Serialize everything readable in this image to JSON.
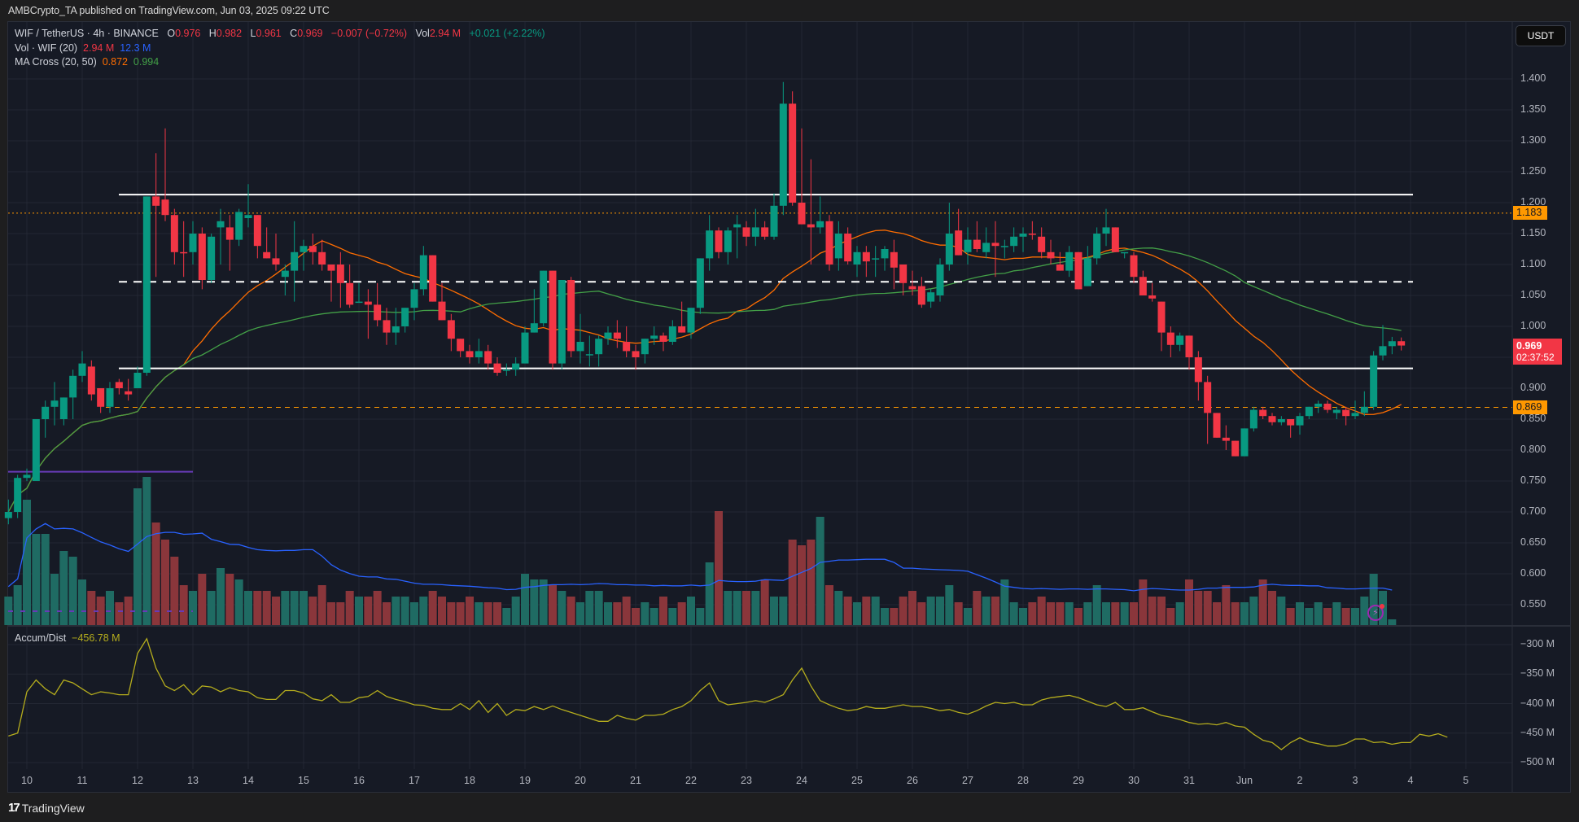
{
  "header": {
    "published": "AMBCrypto_TA published on TradingView.com, Jun 03, 2025 09:22 UTC"
  },
  "legend": {
    "symbol": "WIF / TetherUS · 4h · BINANCE",
    "o_label": "O",
    "o": "0.976",
    "h_label": "H",
    "h": "0.982",
    "l_label": "L",
    "l": "0.961",
    "c_label": "C",
    "c": "0.969",
    "change": "−0.007 (−0.72%)",
    "vol_label": "Vol",
    "vol": "2.94 M",
    "extra_change": "+0.021 (+2.22%)",
    "vol_indicator": "Vol · WIF (20)",
    "vol_value": "2.94 M",
    "vol_ma": "12.3 M",
    "ma_cross": "MA Cross (20, 50)",
    "ma20": "0.872",
    "ma50": "0.994",
    "accum_label": "Accum/Dist",
    "accum_value": "−456.78 M"
  },
  "price_axis": {
    "currency": "USDT",
    "labels": [
      "1.400",
      "1.350",
      "1.300",
      "1.250",
      "1.200",
      "1.150",
      "1.100",
      "1.050",
      "1.000",
      "0.950",
      "0.900",
      "0.850",
      "0.800",
      "0.750",
      "0.700",
      "0.650",
      "0.600",
      "0.550"
    ],
    "tag_upper": "1.183",
    "tag_current": "0.969",
    "tag_countdown": "02:37:52",
    "tag_lower": "0.869"
  },
  "ad_axis": {
    "labels": [
      "−300 M",
      "−350 M",
      "−400 M",
      "−450 M",
      "−500 M"
    ]
  },
  "time_axis": {
    "labels": [
      "10",
      "11",
      "12",
      "13",
      "14",
      "15",
      "16",
      "17",
      "18",
      "19",
      "20",
      "21",
      "22",
      "23",
      "24",
      "25",
      "26",
      "27",
      "28",
      "29",
      "30",
      "31",
      "Jun",
      "2",
      "3",
      "4",
      "5"
    ]
  },
  "footer": {
    "brand": "TradingView"
  },
  "colors": {
    "up": "#089981",
    "down": "#f23645",
    "vol_up": "#1f6b63",
    "vol_down": "#8a363b",
    "ma20": "#ff6d00",
    "ma50": "#43a047",
    "vol_ma": "#2962ff",
    "ad": "#b5ad1d",
    "level_white": "#ffffff",
    "level_orange": "#ff9800",
    "level_purple": "#673ab7"
  },
  "chart_data": {
    "type": "candlestick",
    "title": "WIF / TetherUS · 4h · BINANCE",
    "timeframe": "4h",
    "start": "May 9 16:00",
    "xlabel": "",
    "ylabel": "USDT",
    "ylim": [
      0.52,
      1.44
    ],
    "grid": true,
    "levels": [
      {
        "price": 1.213,
        "style": "solid",
        "color": "white"
      },
      {
        "price": 1.183,
        "style": "dotted",
        "color": "orange"
      },
      {
        "price": 1.072,
        "style": "dashed",
        "color": "white"
      },
      {
        "price": 0.932,
        "style": "solid",
        "color": "white"
      },
      {
        "price": 0.869,
        "style": "dashed",
        "color": "orange"
      },
      {
        "price": 0.765,
        "style": "solid",
        "color": "purple"
      }
    ],
    "ohlc": [
      [
        0.69,
        0.72,
        0.68,
        0.7
      ],
      [
        0.7,
        0.76,
        0.69,
        0.755
      ],
      [
        0.755,
        0.77,
        0.75,
        0.76
      ],
      [
        0.75,
        0.85,
        0.75,
        0.85
      ],
      [
        0.85,
        0.88,
        0.82,
        0.87
      ],
      [
        0.87,
        0.91,
        0.84,
        0.88
      ],
      [
        0.85,
        0.88,
        0.84,
        0.885
      ],
      [
        0.885,
        0.93,
        0.85,
        0.92
      ],
      [
        0.92,
        0.96,
        0.91,
        0.94
      ],
      [
        0.935,
        0.945,
        0.88,
        0.89
      ],
      [
        0.9,
        0.9,
        0.86,
        0.87
      ],
      [
        0.87,
        0.91,
        0.86,
        0.9
      ],
      [
        0.91,
        0.915,
        0.89,
        0.9
      ],
      [
        0.895,
        0.915,
        0.88,
        0.89
      ],
      [
        0.9,
        0.935,
        0.9,
        0.925
      ],
      [
        0.925,
        1.21,
        0.92,
        1.21
      ],
      [
        1.21,
        1.28,
        1.08,
        1.195
      ],
      [
        1.205,
        1.32,
        1.17,
        1.18
      ],
      [
        1.18,
        1.19,
        1.1,
        1.12
      ],
      [
        1.12,
        1.17,
        1.08,
        1.118
      ],
      [
        1.12,
        1.17,
        1.1,
        1.15
      ],
      [
        1.15,
        1.16,
        1.06,
        1.075
      ],
      [
        1.075,
        1.15,
        1.07,
        1.145
      ],
      [
        1.16,
        1.19,
        1.1,
        1.17
      ],
      [
        1.16,
        1.18,
        1.09,
        1.14
      ],
      [
        1.14,
        1.19,
        1.13,
        1.185
      ],
      [
        1.175,
        1.23,
        1.16,
        1.18
      ],
      [
        1.18,
        1.18,
        1.11,
        1.13
      ],
      [
        1.12,
        1.16,
        1.11,
        1.11
      ],
      [
        1.11,
        1.15,
        1.09,
        1.1
      ],
      [
        1.08,
        1.1,
        1.05,
        1.09
      ],
      [
        1.09,
        1.17,
        1.04,
        1.12
      ],
      [
        1.12,
        1.14,
        1.09,
        1.13
      ],
      [
        1.13,
        1.15,
        1.1,
        1.12
      ],
      [
        1.12,
        1.14,
        1.09,
        1.1
      ],
      [
        1.1,
        1.1,
        1.04,
        1.09
      ],
      [
        1.1,
        1.12,
        1.03,
        1.07
      ],
      [
        1.07,
        1.1,
        1.03,
        1.035
      ],
      [
        1.04,
        1.07,
        1.04,
        1.04
      ],
      [
        1.04,
        1.06,
        0.98,
        1.035
      ],
      [
        1.035,
        1.07,
        1.0,
        1.01
      ],
      [
        1.01,
        1.03,
        0.97,
        0.99
      ],
      [
        0.99,
        1.03,
        0.97,
        1.0
      ],
      [
        1.0,
        1.03,
        0.99,
        1.03
      ],
      [
        1.03,
        1.07,
        1.01,
        1.06
      ],
      [
        1.06,
        1.13,
        1.05,
        1.115
      ],
      [
        1.115,
        1.11,
        1.04,
        1.04
      ],
      [
        1.04,
        1.07,
        1.03,
        1.01
      ],
      [
        1.01,
        1.02,
        0.96,
        0.98
      ],
      [
        0.98,
        0.98,
        0.95,
        0.96
      ],
      [
        0.96,
        0.97,
        0.94,
        0.95
      ],
      [
        0.95,
        0.98,
        0.94,
        0.96
      ],
      [
        0.96,
        0.97,
        0.93,
        0.94
      ],
      [
        0.94,
        0.95,
        0.92,
        0.925
      ],
      [
        0.93,
        0.94,
        0.92,
        0.93
      ],
      [
        0.93,
        0.95,
        0.92,
        0.94
      ],
      [
        0.94,
        1.0,
        0.94,
        0.99
      ],
      [
        0.99,
        1.06,
        0.99,
        1.005
      ],
      [
        1.005,
        1.09,
        1.0,
        1.09
      ],
      [
        1.09,
        1.09,
        0.93,
        0.94
      ],
      [
        0.94,
        1.075,
        0.93,
        1.075
      ],
      [
        1.075,
        1.08,
        0.95,
        0.96
      ],
      [
        0.96,
        1.02,
        0.94,
        0.975
      ],
      [
        0.955,
        0.985,
        0.935,
        0.955
      ],
      [
        0.955,
        0.985,
        0.935,
        0.98
      ],
      [
        0.98,
        1.0,
        0.97,
        0.99
      ],
      [
        0.99,
        1.01,
        0.965,
        0.98
      ],
      [
        0.975,
        1.0,
        0.95,
        0.96
      ],
      [
        0.96,
        0.97,
        0.93,
        0.95
      ],
      [
        0.955,
        0.98,
        0.94,
        0.98
      ],
      [
        0.98,
        1.0,
        0.97,
        0.985
      ],
      [
        0.985,
        0.99,
        0.96,
        0.975
      ],
      [
        0.975,
        1.01,
        0.97,
        1.0
      ],
      [
        1.0,
        1.04,
        0.99,
        0.99
      ],
      [
        0.99,
        1.03,
        0.98,
        1.03
      ],
      [
        1.03,
        1.1,
        1.02,
        1.11
      ],
      [
        1.11,
        1.18,
        1.09,
        1.155
      ],
      [
        1.155,
        1.16,
        1.11,
        1.12
      ],
      [
        1.12,
        1.16,
        1.1,
        1.155
      ],
      [
        1.16,
        1.18,
        1.11,
        1.165
      ],
      [
        1.16,
        1.17,
        1.13,
        1.145
      ],
      [
        1.145,
        1.19,
        1.13,
        1.16
      ],
      [
        1.16,
        1.17,
        1.14,
        1.145
      ],
      [
        1.145,
        1.215,
        1.14,
        1.195
      ],
      [
        1.195,
        1.395,
        1.18,
        1.36
      ],
      [
        1.36,
        1.38,
        1.195,
        1.2
      ],
      [
        1.2,
        1.32,
        1.18,
        1.165
      ],
      [
        1.165,
        1.27,
        1.1,
        1.16
      ],
      [
        1.16,
        1.21,
        1.15,
        1.17
      ],
      [
        1.17,
        1.18,
        1.09,
        1.1
      ],
      [
        1.11,
        1.17,
        1.09,
        1.15
      ],
      [
        1.15,
        1.16,
        1.1,
        1.105
      ],
      [
        1.1,
        1.13,
        1.08,
        1.12
      ],
      [
        1.12,
        1.13,
        1.08,
        1.105
      ],
      [
        1.11,
        1.13,
        1.08,
        1.11
      ],
      [
        1.11,
        1.13,
        1.09,
        1.125
      ],
      [
        1.12,
        1.14,
        1.06,
        1.095
      ],
      [
        1.1,
        1.1,
        1.05,
        1.07
      ],
      [
        1.065,
        1.09,
        1.05,
        1.06
      ],
      [
        1.065,
        1.08,
        1.03,
        1.035
      ],
      [
        1.04,
        1.06,
        1.03,
        1.055
      ],
      [
        1.05,
        1.11,
        1.04,
        1.1
      ],
      [
        1.1,
        1.2,
        1.09,
        1.15
      ],
      [
        1.155,
        1.19,
        1.12,
        1.115
      ],
      [
        1.12,
        1.16,
        1.1,
        1.14
      ],
      [
        1.14,
        1.17,
        1.12,
        1.125
      ],
      [
        1.12,
        1.16,
        1.11,
        1.135
      ],
      [
        1.135,
        1.17,
        1.08,
        1.13
      ],
      [
        1.13,
        1.14,
        1.11,
        1.13
      ],
      [
        1.13,
        1.16,
        1.12,
        1.145
      ],
      [
        1.145,
        1.16,
        1.12,
        1.15
      ],
      [
        1.15,
        1.17,
        1.14,
        1.148
      ],
      [
        1.145,
        1.16,
        1.11,
        1.12
      ],
      [
        1.12,
        1.14,
        1.1,
        1.11
      ],
      [
        1.1,
        1.12,
        1.09,
        1.09
      ],
      [
        1.09,
        1.13,
        1.08,
        1.12
      ],
      [
        1.12,
        1.1,
        1.06,
        1.06
      ],
      [
        1.065,
        1.13,
        1.065,
        1.11
      ],
      [
        1.11,
        1.16,
        1.1,
        1.15
      ],
      [
        1.15,
        1.19,
        1.13,
        1.16
      ],
      [
        1.16,
        1.16,
        1.12,
        1.12
      ],
      [
        1.12,
        1.12,
        1.11,
        1.12
      ],
      [
        1.115,
        1.12,
        1.07,
        1.08
      ],
      [
        1.08,
        1.09,
        1.05,
        1.05
      ],
      [
        1.05,
        1.07,
        1.04,
        1.045
      ],
      [
        1.04,
        1.01,
        0.96,
        0.99
      ],
      [
        0.99,
        1.0,
        0.95,
        0.97
      ],
      [
        0.97,
        0.99,
        0.96,
        0.985
      ],
      [
        0.985,
        0.98,
        0.93,
        0.95
      ],
      [
        0.95,
        0.96,
        0.88,
        0.91
      ],
      [
        0.91,
        0.92,
        0.81,
        0.86
      ],
      [
        0.86,
        0.86,
        0.82,
        0.82
      ],
      [
        0.82,
        0.84,
        0.8,
        0.815
      ],
      [
        0.815,
        0.81,
        0.79,
        0.79
      ],
      [
        0.79,
        0.83,
        0.79,
        0.835
      ],
      [
        0.835,
        0.87,
        0.83,
        0.865
      ],
      [
        0.865,
        0.87,
        0.85,
        0.855
      ],
      [
        0.855,
        0.86,
        0.84,
        0.845
      ],
      [
        0.845,
        0.855,
        0.84,
        0.85
      ],
      [
        0.85,
        0.85,
        0.82,
        0.84
      ],
      [
        0.84,
        0.86,
        0.825,
        0.855
      ],
      [
        0.855,
        0.87,
        0.85,
        0.87
      ],
      [
        0.87,
        0.88,
        0.86,
        0.875
      ],
      [
        0.875,
        0.88,
        0.86,
        0.865
      ],
      [
        0.86,
        0.87,
        0.85,
        0.865
      ],
      [
        0.865,
        0.87,
        0.84,
        0.855
      ],
      [
        0.855,
        0.88,
        0.85,
        0.86
      ],
      [
        0.86,
        0.895,
        0.855,
        0.87
      ],
      [
        0.87,
        0.96,
        0.865,
        0.953
      ],
      [
        0.953,
        1.002,
        0.945,
        0.968
      ],
      [
        0.968,
        0.983,
        0.955,
        0.976
      ],
      [
        0.976,
        0.982,
        0.961,
        0.969
      ]
    ],
    "volume": [
      0.5,
      0.7,
      2.2,
      1.6,
      1.6,
      0.9,
      1.3,
      1.2,
      0.8,
      0.6,
      0.5,
      0.6,
      0.4,
      0.5,
      2.4,
      2.6,
      1.8,
      1.5,
      1.2,
      0.7,
      0.6,
      0.9,
      0.6,
      1.0,
      0.9,
      0.8,
      0.6,
      0.6,
      0.6,
      0.5,
      0.6,
      0.6,
      0.6,
      0.5,
      0.7,
      0.4,
      0.4,
      0.6,
      0.5,
      0.5,
      0.6,
      0.4,
      0.5,
      0.5,
      0.4,
      0.5,
      0.6,
      0.5,
      0.4,
      0.4,
      0.5,
      0.4,
      0.4,
      0.4,
      0.3,
      0.5,
      0.9,
      0.8,
      0.8,
      0.7,
      0.6,
      0.5,
      0.4,
      0.6,
      0.6,
      0.4,
      0.4,
      0.5,
      0.3,
      0.4,
      0.3,
      0.5,
      0.3,
      0.4,
      0.5,
      0.3,
      1.1,
      2.0,
      0.6,
      0.6,
      0.6,
      0.6,
      0.8,
      0.5,
      0.5,
      1.5,
      1.4,
      1.5,
      1.9,
      0.7,
      0.6,
      0.5,
      0.4,
      0.5,
      0.5,
      0.3,
      0.3,
      0.5,
      0.6,
      0.4,
      0.5,
      0.5,
      0.7,
      0.4,
      0.3,
      0.6,
      0.5,
      0.5,
      0.8,
      0.4,
      0.3,
      0.4,
      0.5,
      0.4,
      0.4,
      0.4,
      0.3,
      0.4,
      0.7,
      0.4,
      0.4,
      0.4,
      0.4,
      0.8,
      0.5,
      0.5,
      0.3,
      0.4,
      0.8,
      0.6,
      0.6,
      0.4,
      0.7,
      0.4,
      0.4,
      0.5,
      0.8,
      0.6,
      0.5,
      0.3,
      0.4,
      0.3,
      0.4,
      0.3,
      0.4,
      0.3,
      0.3,
      0.5,
      0.9,
      0.6,
      0.1
    ],
    "ad": [
      -455,
      -450,
      -380,
      -360,
      -375,
      -385,
      -360,
      -365,
      -375,
      -385,
      -380,
      -382,
      -385,
      -385,
      -315,
      -290,
      -340,
      -370,
      -378,
      -368,
      -385,
      -370,
      -372,
      -380,
      -373,
      -378,
      -380,
      -390,
      -393,
      -393,
      -378,
      -378,
      -382,
      -392,
      -395,
      -385,
      -398,
      -398,
      -390,
      -388,
      -378,
      -388,
      -393,
      -397,
      -402,
      -403,
      -408,
      -410,
      -410,
      -400,
      -410,
      -395,
      -415,
      -400,
      -420,
      -410,
      -412,
      -405,
      -410,
      -404,
      -410,
      -415,
      -420,
      -425,
      -430,
      -430,
      -420,
      -425,
      -428,
      -420,
      -420,
      -418,
      -410,
      -405,
      -395,
      -378,
      -365,
      -395,
      -402,
      -400,
      -398,
      -395,
      -398,
      -392,
      -385,
      -360,
      -340,
      -370,
      -395,
      -402,
      -408,
      -412,
      -410,
      -405,
      -408,
      -408,
      -405,
      -402,
      -405,
      -405,
      -408,
      -412,
      -410,
      -415,
      -418,
      -412,
      -404,
      -398,
      -400,
      -398,
      -402,
      -402,
      -394,
      -390,
      -388,
      -386,
      -390,
      -396,
      -402,
      -405,
      -398,
      -410,
      -410,
      -407,
      -414,
      -420,
      -423,
      -427,
      -432,
      -435,
      -434,
      -436,
      -432,
      -438,
      -440,
      -452,
      -462,
      -466,
      -478,
      -466,
      -458,
      -465,
      -468,
      -472,
      -472,
      -468,
      -460,
      -460,
      -466,
      -465,
      -469,
      -466,
      -466,
      -452,
      -455,
      -451,
      -457
    ],
    "ma20_endpoints": {
      "end": 0.872
    },
    "ma50_endpoints": {
      "end": 0.994
    },
    "vol_ma_end": "12.3M",
    "accum_dist_end": "-456.78M"
  }
}
